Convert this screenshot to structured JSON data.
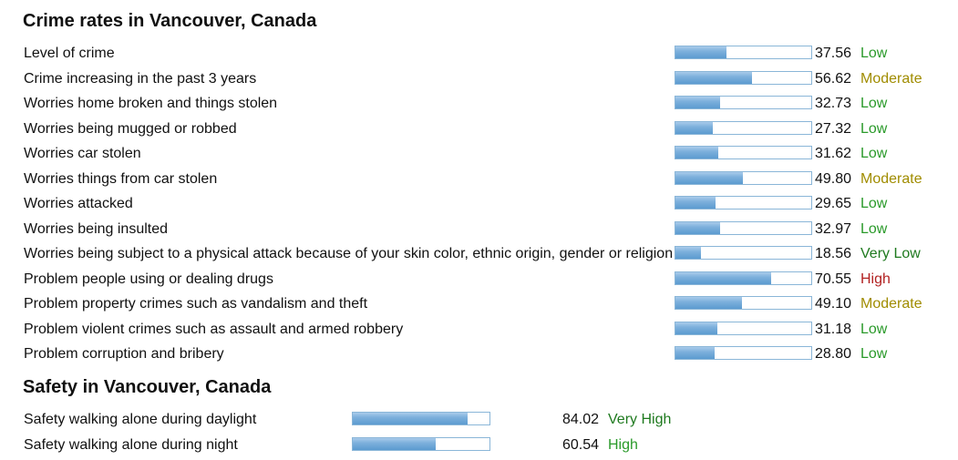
{
  "crime": {
    "title": "Crime rates in Vancouver, Canada",
    "items": [
      {
        "label": "Level of crime",
        "value": "37.56",
        "level": "Low",
        "pct": 37.56
      },
      {
        "label": "Crime increasing in the past 3 years",
        "value": "56.62",
        "level": "Moderate",
        "pct": 56.62
      },
      {
        "label": "Worries home broken and things stolen",
        "value": "32.73",
        "level": "Low",
        "pct": 32.73
      },
      {
        "label": "Worries being mugged or robbed",
        "value": "27.32",
        "level": "Low",
        "pct": 27.32
      },
      {
        "label": "Worries car stolen",
        "value": "31.62",
        "level": "Low",
        "pct": 31.62
      },
      {
        "label": "Worries things from car stolen",
        "value": "49.80",
        "level": "Moderate",
        "pct": 49.8
      },
      {
        "label": "Worries attacked",
        "value": "29.65",
        "level": "Low",
        "pct": 29.65
      },
      {
        "label": "Worries being insulted",
        "value": "32.97",
        "level": "Low",
        "pct": 32.97
      },
      {
        "label": "Worries being subject to a physical attack because of your skin color, ethnic origin, gender or religion",
        "value": "18.56",
        "level": "Very Low",
        "pct": 18.56
      },
      {
        "label": "Problem people using or dealing drugs",
        "value": "70.55",
        "level": "High",
        "pct": 70.55
      },
      {
        "label": "Problem property crimes such as vandalism and theft",
        "value": "49.10",
        "level": "Moderate",
        "pct": 49.1
      },
      {
        "label": "Problem violent crimes such as assault and armed robbery",
        "value": "31.18",
        "level": "Low",
        "pct": 31.18
      },
      {
        "label": "Problem corruption and bribery",
        "value": "28.80",
        "level": "Low",
        "pct": 28.8
      }
    ]
  },
  "safety": {
    "title": "Safety in Vancouver, Canada",
    "items": [
      {
        "label": "Safety walking alone during daylight",
        "value": "84.02",
        "level": "Very High",
        "pct": 84.02
      },
      {
        "label": "Safety walking alone during night",
        "value": "60.54",
        "level": "High",
        "pct": 60.54
      }
    ]
  },
  "level_colors": {
    "Very Low": "#1f7a1f",
    "Low": "#2a9a2a",
    "Moderate": "#a08c00",
    "High": "#b22222",
    "Very High": "#1f7a1f"
  },
  "safety_level_colors": {
    "Very High": "#1f7a1f",
    "High": "#2a9a2a"
  }
}
